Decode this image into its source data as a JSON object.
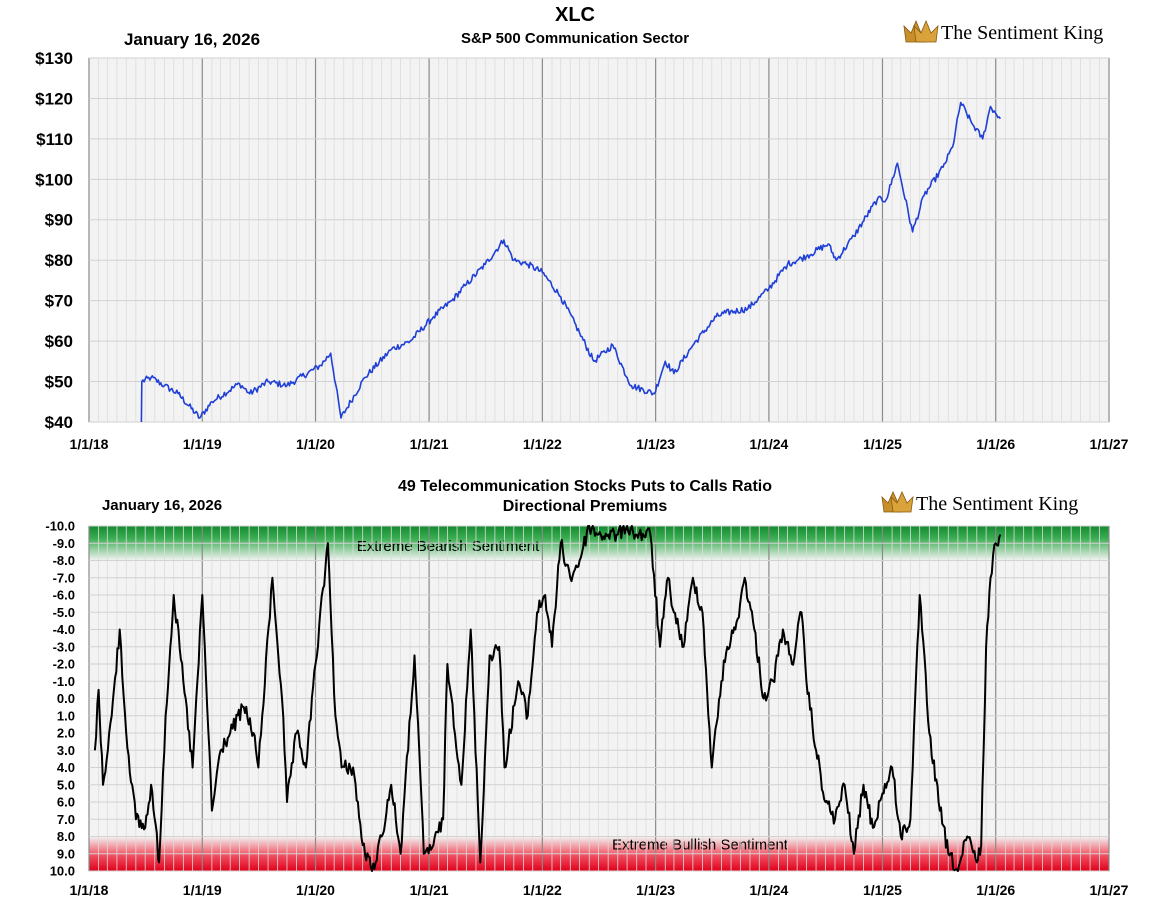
{
  "colors": {
    "price_line": "#1f3fd6",
    "ratio_line": "#000000",
    "bearish_band": "#1a9a3a",
    "bullish_band": "#e8112e",
    "brand_crown": "#c8902a",
    "plot_bg": "#f3f3f3"
  },
  "chart_data": [
    {
      "type": "line",
      "title": "XLC",
      "subtitle": "S&P 500 Communication Sector",
      "date_label": "January 16, 2026",
      "brand": "The Sentiment King",
      "xlabel": "",
      "ylabel": "",
      "x_ticks": [
        "1/1/18",
        "1/1/19",
        "1/1/20",
        "1/1/21",
        "1/1/22",
        "1/1/23",
        "1/1/24",
        "1/1/25",
        "1/1/26",
        "1/1/27"
      ],
      "y_ticks": [
        "$40",
        "$50",
        "$60",
        "$70",
        "$80",
        "$90",
        "$100",
        "$110",
        "$120",
        "$130"
      ],
      "ylim": [
        40,
        130
      ],
      "xlim": [
        "2018-01-01",
        "2027-01-01"
      ],
      "grid": true,
      "series": [
        {
          "x": [
            "2018-06-19",
            "2018-06-20",
            "2018-07-20",
            "2018-09-01",
            "2018-10-15",
            "2018-12-24",
            "2019-02-01",
            "2019-05-01",
            "2019-06-03",
            "2019-08-01",
            "2019-10-01",
            "2020-01-17",
            "2020-02-19",
            "2020-03-23",
            "2020-06-08",
            "2020-09-02",
            "2020-11-01",
            "2021-01-15",
            "2021-03-15",
            "2021-05-01",
            "2021-07-01",
            "2021-08-30",
            "2021-10-01",
            "2021-11-15",
            "2022-01-01",
            "2022-03-01",
            "2022-05-01",
            "2022-06-16",
            "2022-08-16",
            "2022-10-01",
            "2022-10-15",
            "2022-12-28",
            "2023-02-01",
            "2023-03-01",
            "2023-05-01",
            "2023-07-15",
            "2023-08-15",
            "2023-10-25",
            "2024-01-01",
            "2024-03-01",
            "2024-05-01",
            "2024-07-10",
            "2024-08-05",
            "2024-10-01",
            "2024-12-15",
            "2025-01-13",
            "2025-02-18",
            "2025-04-08",
            "2025-05-15",
            "2025-07-15",
            "2025-08-15",
            "2025-09-10",
            "2025-10-15",
            "2025-11-20",
            "2025-12-15",
            "2026-01-16"
          ],
          "values": [
            40,
            50,
            51,
            49,
            47,
            41,
            45,
            49.5,
            47,
            50,
            49,
            54,
            57,
            41,
            51,
            58,
            60,
            66,
            70,
            74,
            79,
            85,
            80,
            79,
            77,
            71,
            62,
            55,
            59,
            51,
            49,
            47,
            55,
            52,
            59,
            66,
            67,
            68,
            73,
            79,
            81,
            84,
            80,
            86,
            95,
            95,
            104,
            87,
            96,
            103,
            108,
            119,
            114,
            110,
            118,
            115
          ]
        }
      ]
    },
    {
      "type": "line",
      "title": "49 Telecommunication Stocks Puts to Calls Ratio",
      "subtitle": "Directional Premiums",
      "date_label": "January 16, 2026",
      "brand": "The Sentiment King",
      "xlabel": "",
      "ylabel": "",
      "x_ticks": [
        "1/1/18",
        "1/1/19",
        "1/1/20",
        "1/1/21",
        "1/1/22",
        "1/1/23",
        "1/1/24",
        "1/1/25",
        "1/1/26",
        "1/1/27"
      ],
      "y_ticks": [
        "-10.0",
        "-9.0",
        "-8.0",
        "-7.0",
        "-6.0",
        "-5.0",
        "-4.0",
        "-3.0",
        "-2.0",
        "-1.0",
        "0.0",
        "1.0",
        "2.0",
        "3.0",
        "4.0",
        "5.0",
        "6.0",
        "7.0",
        "8.0",
        "9.0",
        "10.0"
      ],
      "ylim": [
        -10,
        10
      ],
      "y_inverted": true,
      "xlim": [
        "2018-01-01",
        "2027-01-01"
      ],
      "grid": true,
      "bands": [
        {
          "label": "Extreme Bearish Sentiment",
          "from": -10,
          "to": -8,
          "color": "green"
        },
        {
          "label": "Extreme Bullish Sentiment",
          "from": 8,
          "to": 10,
          "color": "red"
        }
      ],
      "series": [
        {
          "x": [
            "2018-01-20",
            "2018-02-01",
            "2018-02-15",
            "2018-03-15",
            "2018-04-10",
            "2018-05-01",
            "2018-06-01",
            "2018-07-01",
            "2018-07-20",
            "2018-08-15",
            "2018-09-05",
            "2018-10-01",
            "2018-11-01",
            "2018-12-01",
            "2019-01-01",
            "2019-02-01",
            "2019-03-01",
            "2019-04-01",
            "2019-05-15",
            "2019-06-15",
            "2019-07-01",
            "2019-08-15",
            "2019-09-15",
            "2019-10-01",
            "2019-11-01",
            "2019-12-01",
            "2020-01-01",
            "2020-02-10",
            "2020-03-05",
            "2020-03-25",
            "2020-05-01",
            "2020-06-01",
            "2020-07-01",
            "2020-08-01",
            "2020-09-01",
            "2020-10-01",
            "2020-11-15",
            "2020-12-15",
            "2021-01-15",
            "2021-02-15",
            "2021-03-01",
            "2021-04-15",
            "2021-05-15",
            "2021-06-15",
            "2021-07-15",
            "2021-08-15",
            "2021-09-01",
            "2021-10-15",
            "2021-11-15",
            "2021-12-15",
            "2022-01-10",
            "2022-02-01",
            "2022-03-01",
            "2022-04-01",
            "2022-05-01",
            "2022-06-01",
            "2022-07-01",
            "2022-08-01",
            "2022-09-01",
            "2022-10-01",
            "2022-11-01",
            "2022-12-15",
            "2023-01-15",
            "2023-02-10",
            "2023-03-01",
            "2023-04-01",
            "2023-05-01",
            "2023-06-01",
            "2023-07-01",
            "2023-08-01",
            "2023-08-20",
            "2023-09-15",
            "2023-10-15",
            "2023-11-15",
            "2023-12-15",
            "2024-01-15",
            "2024-02-15",
            "2024-03-15",
            "2024-04-15",
            "2024-05-01",
            "2024-06-01",
            "2024-07-01",
            "2024-08-01",
            "2024-09-01",
            "2024-10-01",
            "2024-11-01",
            "2024-12-01",
            "2025-01-01",
            "2025-02-01",
            "2025-03-01",
            "2025-04-01",
            "2025-05-01",
            "2025-06-01",
            "2025-07-01",
            "2025-08-01",
            "2025-09-01",
            "2025-10-01",
            "2025-11-01",
            "2025-11-15",
            "2025-12-01",
            "2025-12-15",
            "2026-01-01",
            "2026-01-16"
          ],
          "values": [
            3.0,
            -0.5,
            5.0,
            1.0,
            -4.0,
            2.0,
            7.0,
            7.5,
            5.0,
            9.5,
            1.0,
            -6.0,
            -1.0,
            4.0,
            -6.0,
            6.5,
            3.0,
            2.0,
            0.5,
            2.0,
            4.0,
            -7.0,
            0.0,
            6.0,
            2.0,
            4.0,
            -2.0,
            -9.0,
            1.0,
            4.0,
            4.0,
            8.5,
            10.0,
            8.0,
            5.0,
            9.0,
            -2.5,
            9.0,
            8.5,
            7.0,
            -2.0,
            5.0,
            -4.0,
            9.5,
            -2.5,
            -3.0,
            4.0,
            -1.0,
            1.0,
            -5.0,
            -6.0,
            -3.0,
            -9.0,
            -7.0,
            -8.0,
            -10.0,
            -9.5,
            -9.5,
            -9.5,
            -10.0,
            -9.5,
            -9.5,
            -3.0,
            -7.0,
            -5.0,
            -3.0,
            -7.0,
            -5.0,
            4.0,
            -1.0,
            -3.0,
            -4.0,
            -7.0,
            -4.0,
            0.0,
            -1.0,
            -4.0,
            -2.0,
            -5.0,
            -1.0,
            3.0,
            6.0,
            7.0,
            5.0,
            9.0,
            5.0,
            7.5,
            5.5,
            4.0,
            8.0,
            7.0,
            -6.0,
            2.0,
            6.0,
            9.0,
            10.0,
            8.0,
            9.5,
            8.5,
            -3.0,
            -7.0,
            -9.0,
            -9.5
          ]
        }
      ]
    }
  ]
}
